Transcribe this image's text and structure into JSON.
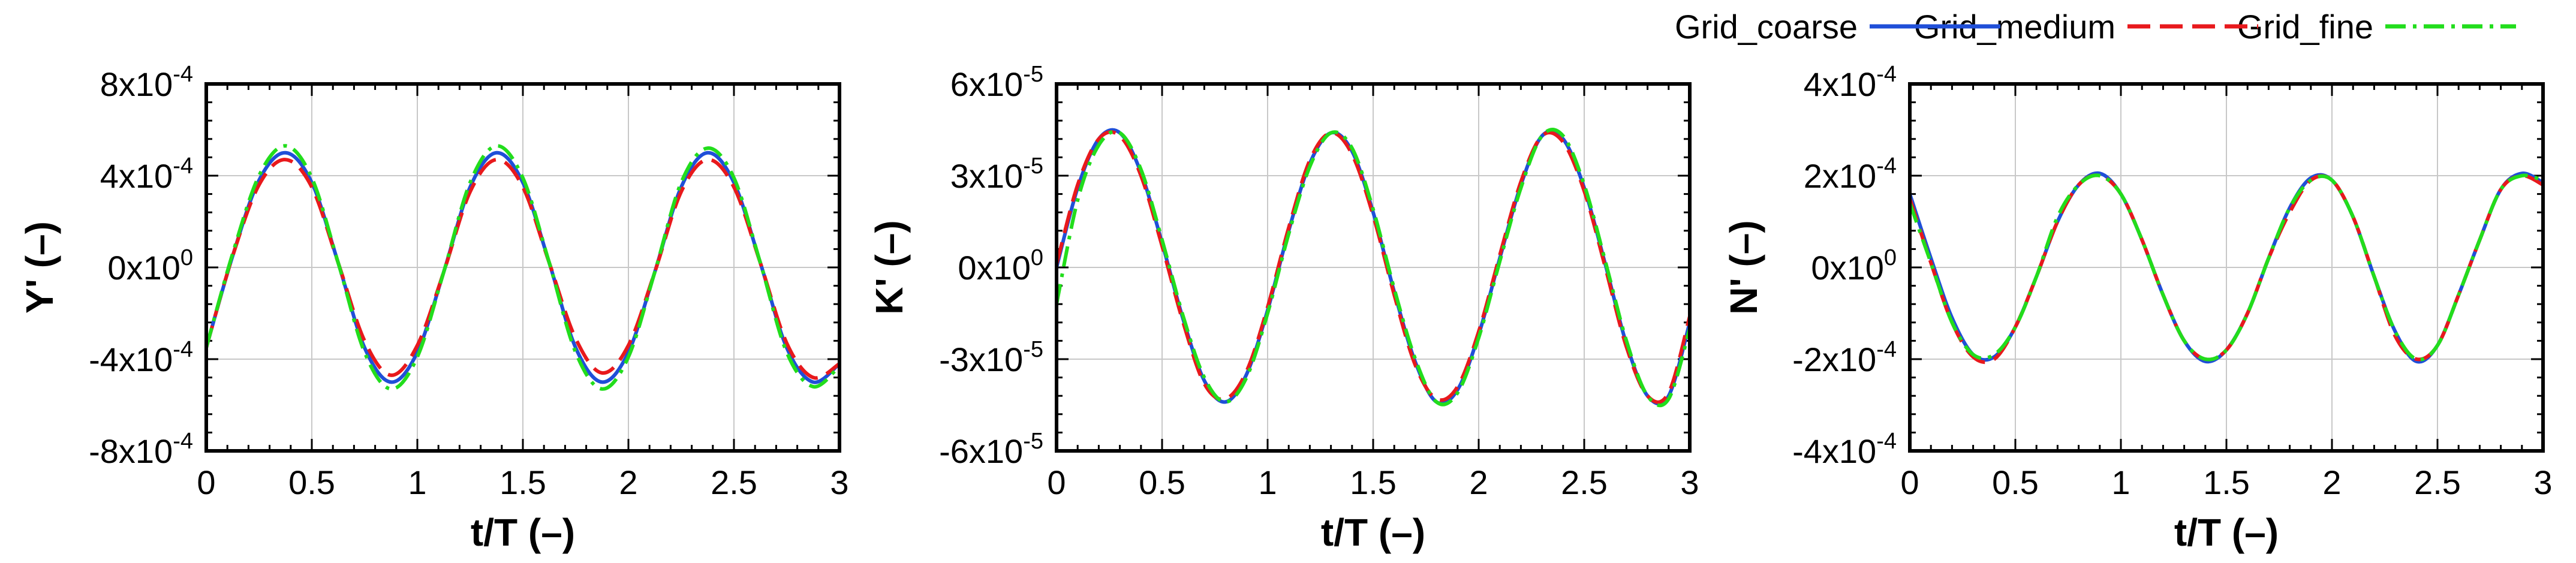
{
  "legend": [
    {
      "name": "Grid_coarse",
      "color": "#1f4fd8",
      "dash": "solid"
    },
    {
      "name": "Grid_medium",
      "color": "#e8191c",
      "dash": "dashed"
    },
    {
      "name": "Grid_fine",
      "color": "#22dd1c",
      "dash": "dashdot"
    }
  ],
  "chart_data": [
    {
      "type": "line",
      "ylabel": "Y' (–)",
      "xlabel": "t/T (–)",
      "xlim": [
        0,
        3
      ],
      "ylim": [
        -0.0008,
        0.0008
      ],
      "x_ticks": [
        0,
        0.5,
        1,
        1.5,
        2,
        2.5,
        3
      ],
      "x_tick_labels": [
        "0",
        "0.5",
        "1",
        "1.5",
        "2",
        "2.5",
        "3"
      ],
      "y_ticks": [
        -0.0008,
        -0.0004,
        0,
        0.0004,
        0.0008
      ],
      "y_tick_labels": [
        {
          "mant": "-8x10",
          "exp": "-4"
        },
        {
          "mant": "-4x10",
          "exp": "-4"
        },
        {
          "mant": "0x10",
          "exp": "0"
        },
        {
          "mant": "4x10",
          "exp": "-4"
        },
        {
          "mant": "8x10",
          "exp": "-4"
        }
      ],
      "grid": true,
      "x": [
        0,
        0.125,
        0.25,
        0.375,
        0.5,
        0.625,
        0.75,
        0.875,
        1,
        1.125,
        1.25,
        1.375,
        1.5,
        1.625,
        1.75,
        1.875,
        2,
        2.125,
        2.25,
        2.375,
        2.5,
        2.625,
        2.75,
        2.875,
        3
      ],
      "series": [
        {
          "name": "Grid_coarse",
          "values": [
            -0.00035,
            5e-05,
            0.00038,
            0.0005,
            0.00037,
            2e-05,
            -0.00035,
            -0.0005,
            -0.00037,
            -2e-05,
            0.00035,
            0.0005,
            0.00037,
            2e-05,
            -0.00035,
            -0.0005,
            -0.00037,
            -2e-05,
            0.00035,
            0.0005,
            0.00037,
            2e-05,
            -0.00035,
            -0.0005,
            -0.00042
          ]
        },
        {
          "name": "Grid_medium",
          "values": [
            -0.00035,
            5e-05,
            0.00036,
            0.00047,
            0.00035,
            2e-05,
            -0.00032,
            -0.00047,
            -0.00034,
            -2e-05,
            0.00033,
            0.00047,
            0.00035,
            2e-05,
            -0.00031,
            -0.00046,
            -0.00034,
            -2e-05,
            0.00033,
            0.00047,
            0.00035,
            2e-05,
            -0.00033,
            -0.00048,
            -0.00042
          ]
        },
        {
          "name": "Grid_fine",
          "values": [
            -0.00035,
            6e-05,
            0.0004,
            0.00053,
            0.00039,
            2e-05,
            -0.00037,
            -0.00053,
            -0.00039,
            -2e-05,
            0.00037,
            0.00053,
            0.00039,
            2e-05,
            -0.00037,
            -0.00053,
            -0.00039,
            -2e-05,
            0.00037,
            0.00052,
            0.00039,
            2e-05,
            -0.00037,
            -0.00052,
            -0.00043
          ]
        }
      ]
    },
    {
      "type": "line",
      "ylabel": "K' (–)",
      "xlabel": "t/T (–)",
      "xlim": [
        0,
        3
      ],
      "ylim": [
        -6e-05,
        6e-05
      ],
      "x_ticks": [
        0,
        0.5,
        1,
        1.5,
        2,
        2.5,
        3
      ],
      "x_tick_labels": [
        "0",
        "0.5",
        "1",
        "1.5",
        "2",
        "2.5",
        "3"
      ],
      "y_ticks": [
        -6e-05,
        -3e-05,
        0,
        3e-05,
        6e-05
      ],
      "y_tick_labels": [
        {
          "mant": "-6x10",
          "exp": "-5"
        },
        {
          "mant": "-3x10",
          "exp": "-5"
        },
        {
          "mant": "0x10",
          "exp": "0"
        },
        {
          "mant": "3x10",
          "exp": "-5"
        },
        {
          "mant": "6x10",
          "exp": "-5"
        }
      ],
      "grid": true,
      "x": [
        0,
        0.1,
        0.2,
        0.3,
        0.4,
        0.5,
        0.6,
        0.7,
        0.8,
        0.9,
        1.0,
        1.1,
        1.2,
        1.3,
        1.4,
        1.5,
        1.6,
        1.7,
        1.8,
        1.9,
        2.0,
        2.1,
        2.2,
        2.3,
        2.4,
        2.5,
        2.6,
        2.7,
        2.8,
        2.9,
        3.0
      ],
      "series": [
        {
          "name": "Grid_coarse",
          "values": [
            0,
            2.6e-05,
            4.2e-05,
            4.4e-05,
            3.1e-05,
            8e-06,
            -1.7e-05,
            -3.7e-05,
            -4.4e-05,
            -3.5e-05,
            -1.4e-05,
            1.2e-05,
            3.4e-05,
            4.4e-05,
            3.8e-05,
            1.8e-05,
            -8e-06,
            -3.1e-05,
            -4.4e-05,
            -4e-05,
            -2.2e-05,
            3e-06,
            2.7e-05,
            4.3e-05,
            4.2e-05,
            2.6e-05,
            1e-06,
            -2.5e-05,
            -4.2e-05,
            -4.2e-05,
            -1.8e-05
          ]
        },
        {
          "name": "Grid_medium",
          "values": [
            1e-06,
            2.7e-05,
            4.2e-05,
            4.3e-05,
            3e-05,
            7e-06,
            -1.8e-05,
            -3.8e-05,
            -4.3e-05,
            -3.4e-05,
            -1.3e-05,
            1.3e-05,
            3.5e-05,
            4.4e-05,
            3.7e-05,
            1.7e-05,
            -9e-06,
            -3.2e-05,
            -4.3e-05,
            -3.9e-05,
            -2.1e-05,
            4e-06,
            2.8e-05,
            4.3e-05,
            4.1e-05,
            2.5e-05,
            0,
            -2.6e-05,
            -4.2e-05,
            -4.1e-05,
            -1.6e-05
          ]
        },
        {
          "name": "Grid_fine",
          "values": [
            -1.2e-05,
            2.2e-05,
            4e-05,
            4.4e-05,
            3.2e-05,
            9e-06,
            -1.6e-05,
            -3.6e-05,
            -4.4e-05,
            -3.6e-05,
            -1.5e-05,
            1.1e-05,
            3.3e-05,
            4.4e-05,
            3.9e-05,
            1.9e-05,
            -7e-06,
            -3e-05,
            -4.4e-05,
            -4.1e-05,
            -2.3e-05,
            2e-06,
            2.6e-05,
            4.3e-05,
            4.3e-05,
            2.7e-05,
            2e-06,
            -2.4e-05,
            -4.2e-05,
            -4.3e-05,
            -2e-05
          ]
        }
      ]
    },
    {
      "type": "line",
      "ylabel": "N' (–)",
      "xlabel": "t/T (–)",
      "xlim": [
        0,
        3
      ],
      "ylim": [
        -0.0004,
        0.0004
      ],
      "x_ticks": [
        0,
        0.5,
        1,
        1.5,
        2,
        2.5,
        3
      ],
      "x_tick_labels": [
        "0",
        "0.5",
        "1",
        "1.5",
        "2",
        "2.5",
        "3"
      ],
      "y_ticks": [
        -0.0004,
        -0.0002,
        0,
        0.0002,
        0.0004
      ],
      "y_tick_labels": [
        {
          "mant": "-4x10",
          "exp": "-4"
        },
        {
          "mant": "-2x10",
          "exp": "-4"
        },
        {
          "mant": "0x10",
          "exp": "0"
        },
        {
          "mant": "2x10",
          "exp": "-4"
        },
        {
          "mant": "4x10",
          "exp": "-4"
        }
      ],
      "grid": true,
      "x": [
        0,
        0.1,
        0.2,
        0.3,
        0.4,
        0.5,
        0.6,
        0.7,
        0.8,
        0.9,
        1.0,
        1.1,
        1.2,
        1.3,
        1.4,
        1.5,
        1.6,
        1.7,
        1.8,
        1.9,
        2.0,
        2.1,
        2.2,
        2.3,
        2.4,
        2.5,
        2.6,
        2.7,
        2.8,
        2.9,
        3.0
      ],
      "series": [
        {
          "name": "Grid_coarse",
          "values": [
            0.00016,
            2e-05,
            -0.00011,
            -0.00019,
            -0.000195,
            -0.00013,
            -2e-05,
            0.0001,
            0.00018,
            0.000205,
            0.00016,
            6e-05,
            -6e-05,
            -0.00016,
            -0.000205,
            -0.00018,
            -0.0001,
            2e-05,
            0.00013,
            0.000195,
            0.00019,
            0.00011,
            -2e-05,
            -0.00014,
            -0.000205,
            -0.00017,
            -6e-05,
            6e-05,
            0.00017,
            0.000205,
            0.000185
          ]
        },
        {
          "name": "Grid_medium",
          "values": [
            0.00015,
            1e-05,
            -0.00012,
            -0.000195,
            -0.0002,
            -0.00013,
            -2e-05,
            0.0001,
            0.00018,
            0.0002,
            0.00016,
            6e-05,
            -6e-05,
            -0.00016,
            -0.0002,
            -0.00018,
            -0.0001,
            2e-05,
            0.00012,
            0.00019,
            0.00019,
            0.00011,
            -2e-05,
            -0.00015,
            -0.0002,
            -0.00017,
            -6e-05,
            6e-05,
            0.00017,
            0.0002,
            0.00018
          ]
        },
        {
          "name": "Grid_fine",
          "values": [
            0.00014,
            1e-05,
            -0.00012,
            -0.00019,
            -0.00019,
            -0.00013,
            -2e-05,
            0.00011,
            0.00018,
            0.0002,
            0.00016,
            6e-05,
            -6e-05,
            -0.00016,
            -0.0002,
            -0.00018,
            -0.0001,
            2e-05,
            0.00013,
            0.00019,
            0.00019,
            0.00011,
            -2e-05,
            -0.00014,
            -0.0002,
            -0.00017,
            -6e-05,
            6e-05,
            0.00017,
            0.0002,
            0.00019
          ]
        }
      ]
    }
  ]
}
